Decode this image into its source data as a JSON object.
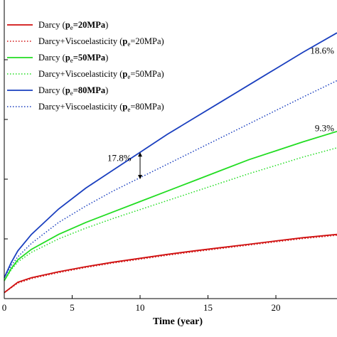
{
  "chart_data": {
    "type": "line",
    "title": "",
    "xlabel": "Time (year)",
    "ylabel": "",
    "xlim": [
      0,
      24.5
    ],
    "ylim": [
      0,
      1.0
    ],
    "x_ticks": [
      0,
      5,
      10,
      15,
      20
    ],
    "x_tick_labels": [
      "0",
      "5",
      "10",
      "15",
      "20"
    ],
    "grid": false,
    "legend_position": "top-left",
    "series": [
      {
        "name_prefix": "Darcy (",
        "name_bold": "p",
        "name_sub": "e",
        "name_bold_rest": "=20MPa",
        "name_suffix": ")",
        "color": "#d01010",
        "dash": "solid",
        "x": [
          0,
          1,
          2,
          4,
          6,
          8,
          10,
          12,
          14,
          16,
          18,
          20,
          22,
          24.5
        ],
        "values": [
          0.02,
          0.055,
          0.07,
          0.09,
          0.107,
          0.122,
          0.135,
          0.148,
          0.16,
          0.171,
          0.182,
          0.193,
          0.204,
          0.215
        ]
      },
      {
        "name_prefix": "Darcy+Viscoelasticity (",
        "name_bold": "p",
        "name_sub": "e",
        "name_bold_rest": "=20MPa",
        "name_suffix": ")",
        "color": "#d01010",
        "dash": "dotted",
        "x": [
          0,
          1,
          2,
          4,
          6,
          8,
          10,
          12,
          14,
          16,
          18,
          20,
          22,
          24.5
        ],
        "values": [
          0.02,
          0.052,
          0.067,
          0.087,
          0.104,
          0.119,
          0.132,
          0.145,
          0.157,
          0.168,
          0.179,
          0.19,
          0.201,
          0.212
        ]
      },
      {
        "name_prefix": "Darcy (",
        "name_bold": "p",
        "name_sub": "e",
        "name_bold_rest": "=50MPa",
        "name_suffix": ")",
        "color": "#22dd22",
        "dash": "solid",
        "x": [
          0,
          0.5,
          1,
          2,
          4,
          6,
          8,
          10,
          12,
          14,
          16,
          18,
          20,
          22,
          24.5
        ],
        "values": [
          0.06,
          0.1,
          0.13,
          0.165,
          0.215,
          0.255,
          0.29,
          0.325,
          0.36,
          0.395,
          0.43,
          0.465,
          0.495,
          0.525,
          0.56
        ]
      },
      {
        "name_prefix": "Darcy+Viscoelasticity (",
        "name_bold": "p",
        "name_sub": "e",
        "name_bold_rest": "=50MPa",
        "name_suffix": ")",
        "color": "#22dd22",
        "dash": "dotted",
        "x": [
          0,
          0.5,
          1,
          2,
          4,
          6,
          8,
          10,
          12,
          14,
          16,
          18,
          20,
          22,
          24.5
        ],
        "values": [
          0.06,
          0.096,
          0.123,
          0.155,
          0.2,
          0.236,
          0.268,
          0.298,
          0.328,
          0.358,
          0.388,
          0.418,
          0.446,
          0.474,
          0.505
        ]
      },
      {
        "name_prefix": "Darcy (",
        "name_bold": "p",
        "name_sub": "e",
        "name_bold_rest": "=80MPa",
        "name_suffix": ")",
        "color": "#1a3fbf",
        "dash": "solid",
        "x": [
          0,
          0.5,
          1,
          2,
          4,
          6,
          8,
          10,
          12,
          14,
          16,
          18,
          20,
          22,
          24.5
        ],
        "values": [
          0.07,
          0.12,
          0.16,
          0.215,
          0.3,
          0.37,
          0.43,
          0.49,
          0.55,
          0.605,
          0.66,
          0.715,
          0.77,
          0.825,
          0.89
        ]
      },
      {
        "name_prefix": "Darcy+Viscoelasticity (",
        "name_bold": "p",
        "name_sub": "e",
        "name_bold_rest": "=80MPa",
        "name_suffix": ")",
        "color": "#1a3fbf",
        "dash": "dotted",
        "x": [
          0,
          0.5,
          1,
          2,
          4,
          6,
          8,
          10,
          12,
          14,
          16,
          18,
          20,
          22,
          24.5
        ],
        "values": [
          0.07,
          0.11,
          0.14,
          0.185,
          0.255,
          0.31,
          0.36,
          0.405,
          0.45,
          0.495,
          0.54,
          0.585,
          0.63,
          0.675,
          0.73
        ]
      }
    ],
    "annotations": [
      {
        "text": "17.8%",
        "x": 10,
        "y": 0.47,
        "arrow_from": 0.49,
        "arrow_to": 0.4
      },
      {
        "text": "18.6%",
        "x": 24.5,
        "y": 0.83
      },
      {
        "text": "9.3%",
        "x": 24.5,
        "y": 0.57
      }
    ]
  }
}
